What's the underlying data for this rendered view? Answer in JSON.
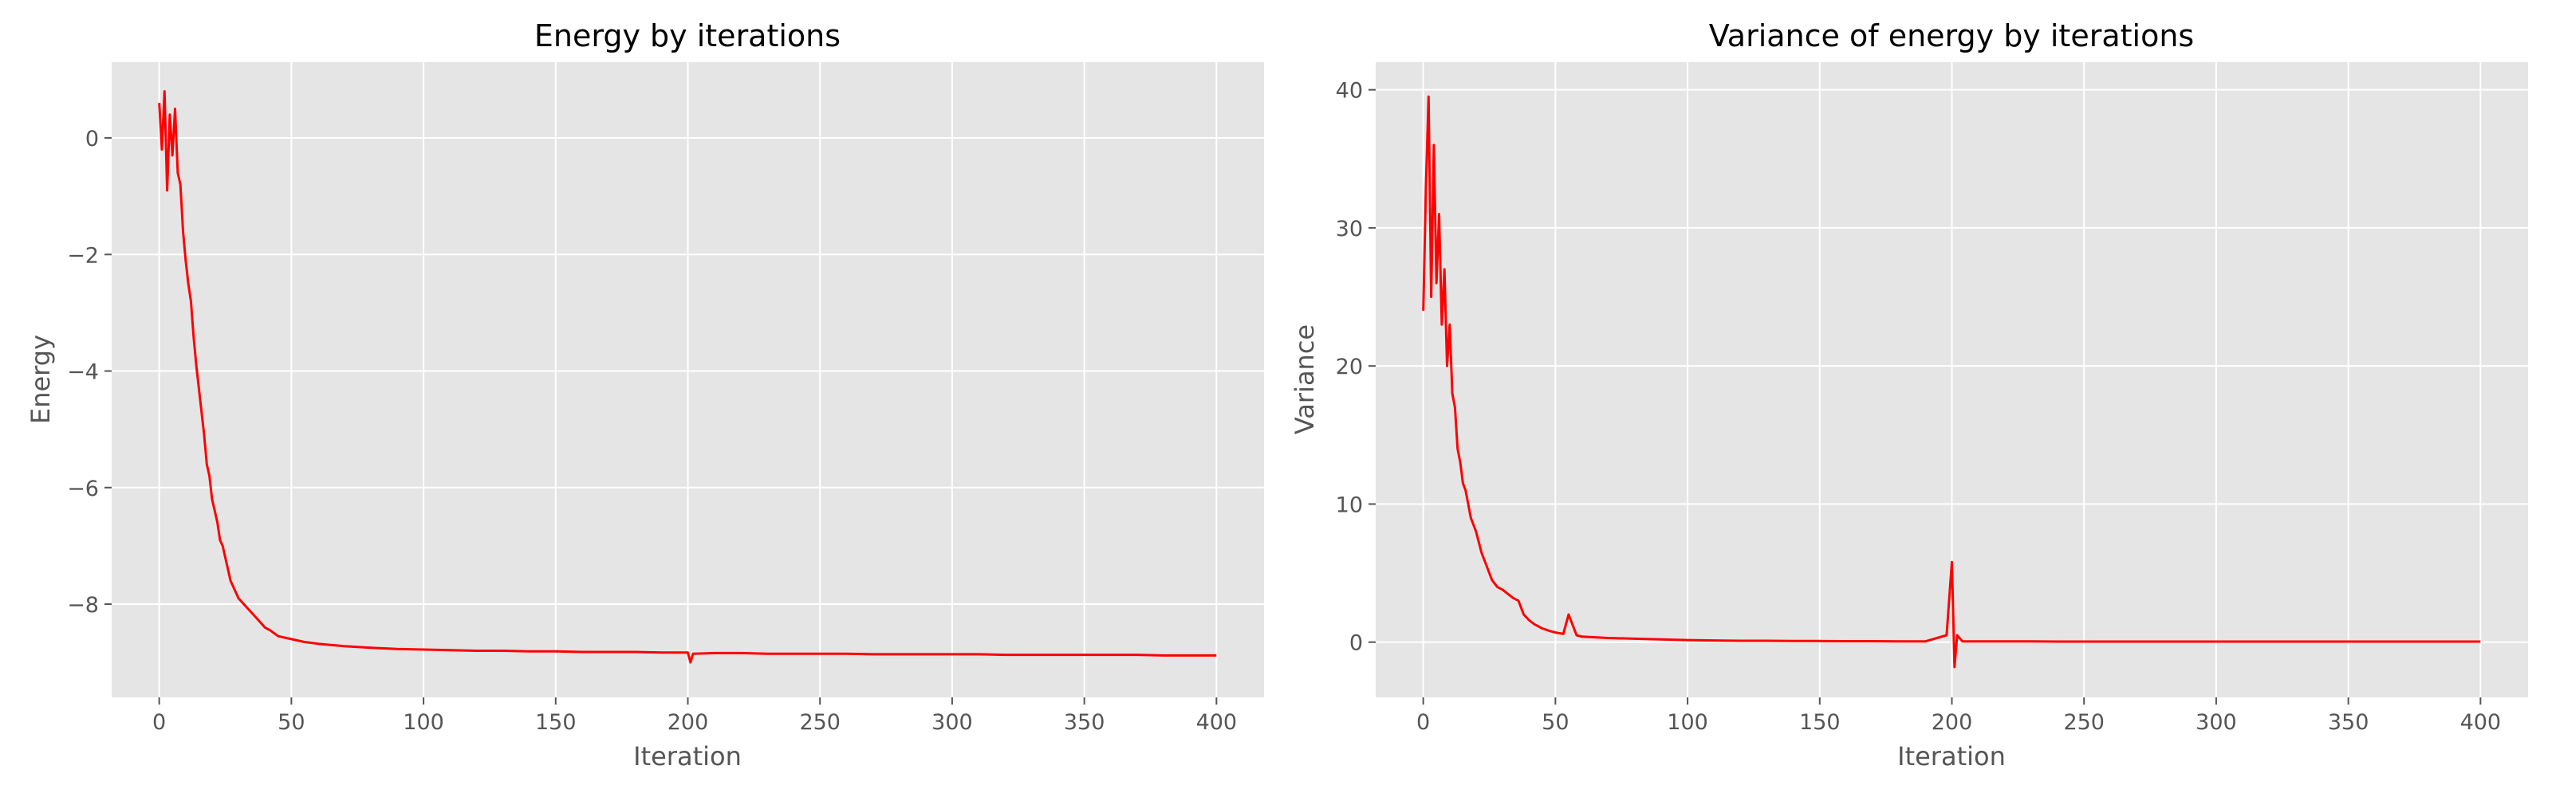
{
  "chart_data": [
    {
      "type": "line",
      "title": "Energy by iterations",
      "xlabel": "Iteration",
      "ylabel": "Energy",
      "xlim": [
        -18,
        418
      ],
      "ylim": [
        -9.6,
        1.3
      ],
      "xticks": [
        0,
        50,
        100,
        150,
        200,
        250,
        300,
        350,
        400
      ],
      "yticks": [
        0,
        -2,
        -4,
        -6,
        -8
      ],
      "ytick_labels": [
        "0",
        "−2",
        "−4",
        "−6",
        "−8"
      ],
      "grid": true,
      "series": [
        {
          "color": "#ff0000",
          "x": [
            0,
            1,
            2,
            3,
            4,
            5,
            6,
            7,
            8,
            9,
            10,
            11,
            12,
            13,
            14,
            15,
            16,
            17,
            18,
            19,
            20,
            21,
            22,
            23,
            24,
            25,
            26,
            27,
            28,
            30,
            32,
            34,
            36,
            38,
            40,
            42,
            45,
            50,
            55,
            60,
            65,
            70,
            80,
            90,
            100,
            110,
            120,
            130,
            140,
            150,
            160,
            170,
            180,
            190,
            200,
            201,
            202,
            210,
            220,
            230,
            240,
            250,
            260,
            270,
            280,
            290,
            300,
            310,
            320,
            330,
            340,
            350,
            360,
            370,
            380,
            390,
            400
          ],
          "values": [
            0.6,
            -0.2,
            0.8,
            -0.9,
            0.4,
            -0.3,
            0.5,
            -0.6,
            -0.8,
            -1.6,
            -2.1,
            -2.5,
            -2.8,
            -3.4,
            -3.9,
            -4.3,
            -4.7,
            -5.1,
            -5.6,
            -5.8,
            -6.2,
            -6.4,
            -6.6,
            -6.9,
            -7.0,
            -7.2,
            -7.4,
            -7.6,
            -7.7,
            -7.9,
            -8.0,
            -8.1,
            -8.2,
            -8.3,
            -8.4,
            -8.45,
            -8.55,
            -8.6,
            -8.65,
            -8.68,
            -8.7,
            -8.72,
            -8.75,
            -8.77,
            -8.78,
            -8.79,
            -8.8,
            -8.8,
            -8.81,
            -8.81,
            -8.82,
            -8.82,
            -8.82,
            -8.83,
            -8.83,
            -9.0,
            -8.85,
            -8.84,
            -8.84,
            -8.85,
            -8.85,
            -8.85,
            -8.85,
            -8.86,
            -8.86,
            -8.86,
            -8.86,
            -8.86,
            -8.87,
            -8.87,
            -8.87,
            -8.87,
            -8.87,
            -8.87,
            -8.88,
            -8.88,
            -8.88
          ]
        }
      ]
    },
    {
      "type": "line",
      "title": "Variance of energy by iterations",
      "xlabel": "Iteration",
      "ylabel": "Variance",
      "xlim": [
        -18,
        418
      ],
      "ylim": [
        -4,
        42
      ],
      "xticks": [
        0,
        50,
        100,
        150,
        200,
        250,
        300,
        350,
        400
      ],
      "yticks": [
        0,
        10,
        20,
        30,
        40
      ],
      "ytick_labels": [
        "0",
        "10",
        "20",
        "30",
        "40"
      ],
      "grid": true,
      "series": [
        {
          "color": "#ff0000",
          "x": [
            0,
            1,
            2,
            3,
            4,
            5,
            6,
            7,
            8,
            9,
            10,
            11,
            12,
            13,
            14,
            15,
            16,
            17,
            18,
            19,
            20,
            22,
            24,
            26,
            28,
            30,
            32,
            34,
            36,
            38,
            40,
            42,
            45,
            48,
            50,
            53,
            55,
            58,
            60,
            65,
            70,
            80,
            90,
            100,
            110,
            120,
            130,
            140,
            150,
            160,
            170,
            180,
            190,
            198,
            200,
            201,
            202,
            204,
            210,
            220,
            230,
            240,
            250,
            260,
            270,
            280,
            290,
            300,
            310,
            320,
            330,
            340,
            350,
            360,
            370,
            380,
            390,
            400
          ],
          "values": [
            24,
            33,
            39.5,
            25,
            36,
            26,
            31,
            23,
            27,
            20,
            23,
            18,
            17,
            14,
            13,
            11.5,
            11,
            10,
            9,
            8.5,
            8,
            6.5,
            5.5,
            4.5,
            4,
            3.8,
            3.5,
            3.2,
            3.0,
            2.0,
            1.6,
            1.3,
            1.0,
            0.8,
            0.7,
            0.6,
            2.0,
            0.5,
            0.4,
            0.35,
            0.3,
            0.25,
            0.2,
            0.15,
            0.12,
            0.1,
            0.1,
            0.08,
            0.08,
            0.07,
            0.07,
            0.06,
            0.06,
            0.5,
            5.8,
            -1.8,
            0.5,
            0.05,
            0.05,
            0.05,
            0.05,
            0.04,
            0.04,
            0.04,
            0.04,
            0.04,
            0.04,
            0.04,
            0.04,
            0.04,
            0.04,
            0.04,
            0.04,
            0.04,
            0.04,
            0.04,
            0.04,
            0.04
          ]
        }
      ]
    }
  ]
}
